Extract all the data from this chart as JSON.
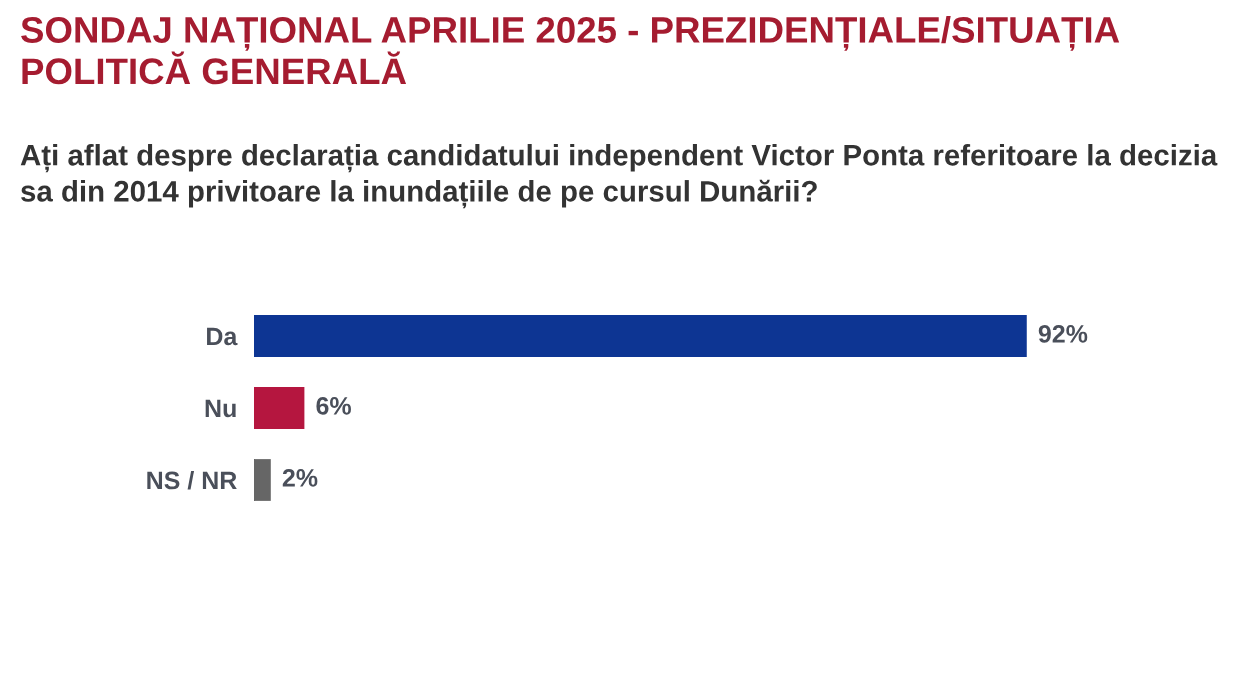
{
  "chart_data": {
    "type": "bar",
    "orientation": "horizontal",
    "title": "SONDAJ NAȚIONAL APRILIE 2025 - PREZIDENȚIALE/SITUAȚIA POLITICĂ GENERALĂ",
    "subtitle": "Ați aflat despre declarația candidatului independent Victor Ponta referitoare la decizia sa din 2014 privitoare la inundațiile de pe cursul Dunării?",
    "categories": [
      "Da",
      "Nu",
      "NS / NR"
    ],
    "values": [
      92,
      6,
      2
    ],
    "colors": [
      "#0d3593",
      "#b5163f",
      "#666666"
    ],
    "value_labels": [
      "92%",
      "6%",
      "2%"
    ],
    "grid": false,
    "legend": false
  }
}
